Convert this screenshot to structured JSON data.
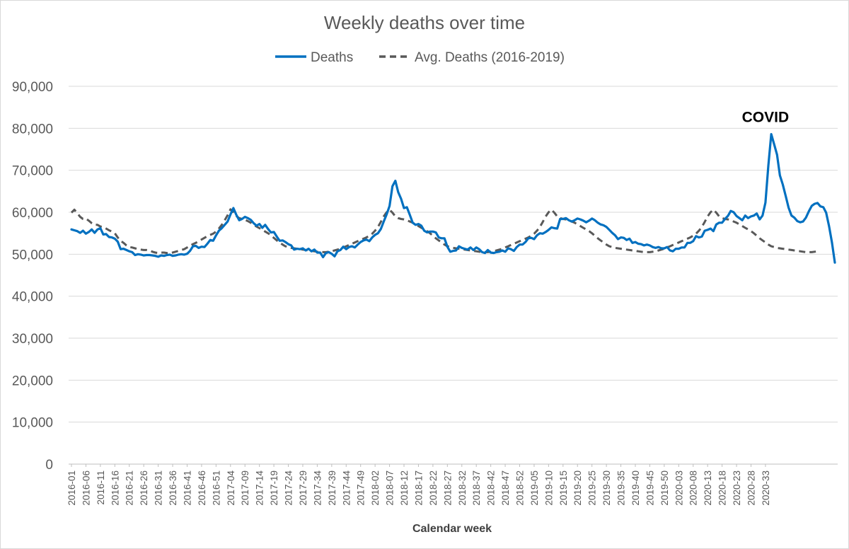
{
  "chart_data": {
    "type": "line",
    "title": "Weekly deaths over time",
    "xlabel": "Calendar week",
    "ylabel": "",
    "ylim": [
      0,
      90000
    ],
    "yticks": [
      0,
      10000,
      20000,
      30000,
      40000,
      50000,
      60000,
      70000,
      80000,
      90000
    ],
    "ytick_labels": [
      "0",
      "10,000",
      "20,000",
      "30,000",
      "40,000",
      "50,000",
      "60,000",
      "70,000",
      "80,000",
      "90,000"
    ],
    "grid": true,
    "legend_position": "top",
    "x_tick_labels": [
      "2016-01",
      "2016-06",
      "2016-11",
      "2016-16",
      "2016-21",
      "2016-26",
      "2016-31",
      "2016-36",
      "2016-41",
      "2016-46",
      "2016-51",
      "2017-04",
      "2017-09",
      "2017-14",
      "2017-19",
      "2017-24",
      "2017-29",
      "2017-34",
      "2017-39",
      "2017-44",
      "2017-49",
      "2018-02",
      "2018-07",
      "2018-12",
      "2018-17",
      "2018-22",
      "2018-27",
      "2018-32",
      "2018-37",
      "2018-42",
      "2018-47",
      "2018-52",
      "2019-05",
      "2019-10",
      "2019-15",
      "2019-20",
      "2019-25",
      "2019-30",
      "2019-35",
      "2019-40",
      "2019-45",
      "2019-50",
      "2020-03",
      "2020-08",
      "2020-13",
      "2020-18",
      "2020-23",
      "2020-28",
      "2020-33"
    ],
    "annotation": {
      "text": "COVID",
      "x_index": 240,
      "y": 81500
    },
    "series": [
      {
        "name": "Deaths",
        "color": "#0070C0",
        "style": "solid",
        "values": [
          55900,
          55700,
          55500,
          55100,
          55600,
          54900,
          55300,
          55900,
          55100,
          55900,
          56200,
          54700,
          54800,
          54100,
          54000,
          53700,
          53000,
          51200,
          51300,
          51000,
          50700,
          50500,
          49800,
          50000,
          49900,
          49700,
          49800,
          49800,
          49700,
          49600,
          49400,
          49700,
          49600,
          49800,
          49900,
          49600,
          49700,
          49900,
          50000,
          49900,
          50100,
          50800,
          51900,
          52000,
          51500,
          51800,
          51700,
          52500,
          53400,
          53200,
          54500,
          55600,
          56200,
          57000,
          57800,
          59500,
          61000,
          59400,
          58100,
          58400,
          58900,
          58600,
          58200,
          57400,
          56800,
          57200,
          56300,
          57000,
          56000,
          55200,
          55300,
          54200,
          53200,
          53300,
          52900,
          52400,
          52100,
          51100,
          51300,
          51200,
          51400,
          50900,
          51300,
          50700,
          51100,
          50400,
          50400,
          49300,
          50300,
          50500,
          50100,
          49500,
          50700,
          51000,
          51800,
          51200,
          51700,
          51900,
          51600,
          52300,
          52900,
          53300,
          53500,
          53100,
          54000,
          54600,
          55000,
          56000,
          57800,
          59500,
          61500,
          66200,
          67500,
          64800,
          63200,
          61000,
          61200,
          59400,
          57500,
          57000,
          57200,
          56800,
          55600,
          55200,
          55400,
          55400,
          55200,
          54000,
          53800,
          53800,
          51800,
          50600,
          50800,
          50900,
          51900,
          51500,
          51300,
          51100,
          51600,
          51000,
          51600,
          51200,
          50500,
          50300,
          51000,
          50400,
          50300,
          50500,
          50600,
          50900,
          50600,
          51400,
          51200,
          50800,
          51700,
          52300,
          52300,
          52900,
          53800,
          53900,
          53600,
          54500,
          55000,
          54900,
          55300,
          55800,
          56400,
          56200,
          56100,
          58400,
          58400,
          58600,
          58100,
          57800,
          58100,
          58500,
          58300,
          58000,
          57600,
          58000,
          58500,
          58100,
          57500,
          57100,
          56900,
          56500,
          55800,
          55100,
          54500,
          53600,
          54000,
          53900,
          53400,
          53700,
          52700,
          52900,
          52500,
          52400,
          52100,
          52300,
          52100,
          51700,
          51500,
          51700,
          51400,
          51400,
          51700,
          50900,
          50700,
          51300,
          51300,
          51600,
          51600,
          52700,
          52700,
          53100,
          54300,
          54000,
          54200,
          55600,
          55800,
          56100,
          55500,
          57100,
          57500,
          57500,
          58400,
          59100,
          60300,
          60000,
          59100,
          58600,
          58100,
          59200,
          58600,
          59000,
          59200,
          59700,
          58300,
          59200,
          62300,
          71100,
          78600,
          76200,
          73700,
          68800,
          66600,
          63900,
          61100,
          59200,
          58700,
          57900,
          57600,
          57800,
          58700,
          60200,
          61500,
          62000,
          62200,
          61400,
          61200,
          59900,
          56700,
          52800,
          48000
        ]
      },
      {
        "name": "Avg. Deaths (2016-2019)",
        "color": "#595959",
        "style": "dashed",
        "values": [
          59900,
          60600,
          59800,
          58900,
          58400,
          58500,
          58000,
          57400,
          57000,
          57000,
          56600,
          56500,
          56100,
          55700,
          55400,
          55000,
          54000,
          53200,
          52700,
          52100,
          51700,
          51600,
          51400,
          51200,
          51100,
          51000,
          51000,
          50900,
          50600,
          50400,
          50300,
          50400,
          50400,
          50300,
          50200,
          50400,
          50600,
          50800,
          51000,
          51200,
          51600,
          52000,
          52400,
          52700,
          53100,
          53500,
          53900,
          54300,
          54600,
          54900,
          55400,
          56100,
          57000,
          58100,
          59300,
          60700,
          60000,
          59100,
          58600,
          58400,
          58200,
          57900,
          57500,
          57000,
          56600,
          56200,
          55800,
          55400,
          55000,
          54500,
          53900,
          53300,
          52800,
          52300,
          51900,
          51700,
          51500,
          51400,
          51300,
          51200,
          51100,
          51000,
          50900,
          50800,
          50700,
          50600,
          50500,
          50500,
          50500,
          50600,
          50700,
          50900,
          51100,
          51300,
          51600,
          51900,
          52200,
          52500,
          52800,
          53100,
          53400,
          53700,
          54000,
          54400,
          54900,
          55600,
          56500,
          57700,
          59000,
          60000,
          60600,
          59900,
          59000,
          58600,
          58400,
          58300,
          58100,
          57800,
          57500,
          57100,
          56700,
          56300,
          55900,
          55500,
          55000,
          54400,
          53800,
          53300,
          52800,
          52300,
          51900,
          51700,
          51500,
          51400,
          51300,
          51200,
          51100,
          51000,
          50900,
          50800,
          50700,
          50600,
          50500,
          50500,
          50500,
          50600,
          50700,
          50900,
          51100,
          51300,
          51600,
          51900,
          52200,
          52500,
          52800,
          53100,
          53400,
          53700,
          54000,
          54400,
          54900,
          55600,
          56500,
          57700,
          59000,
          60000,
          60600,
          59900,
          59000,
          58600,
          58400,
          58300,
          58100,
          57800,
          57500,
          57100,
          56700,
          56300,
          55900,
          55500,
          55000,
          54400,
          53800,
          53300,
          52800,
          52300,
          51900,
          51700,
          51500,
          51400,
          51300,
          51200,
          51100,
          51000,
          50900,
          50800,
          50700,
          50600,
          50500,
          50500,
          50500,
          50600,
          50700,
          50900,
          51100,
          51300,
          51600,
          51900,
          52200,
          52500,
          52800,
          53100,
          53400,
          53700,
          54000,
          54400,
          54900,
          55600,
          56500,
          57700,
          59000,
          60000,
          60600,
          59900,
          59000,
          58600,
          58400,
          58300,
          58100,
          57800,
          57500,
          57100,
          56700,
          56300,
          55900,
          55500,
          55000,
          54400,
          53800,
          53300,
          52800,
          52300,
          51900,
          51700,
          51500,
          51400,
          51300,
          51200,
          51100,
          51000,
          50900,
          50800,
          50700,
          50600,
          50500,
          50500,
          50500,
          50600,
          50700
        ]
      }
    ]
  }
}
